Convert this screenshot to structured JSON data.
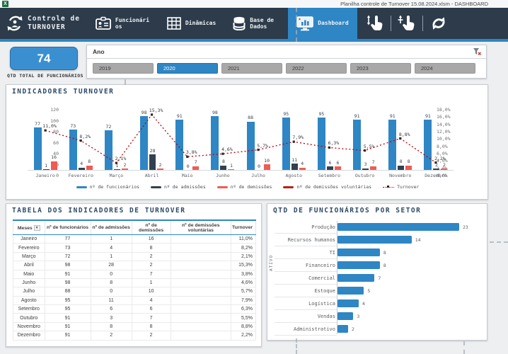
{
  "titlebar": {
    "title": "Planilha controle de Turnover 15.08.2024.xlsm - DASHBOARD"
  },
  "nav": {
    "brand": {
      "line1": "Controle de",
      "line2": "TURNOVER"
    },
    "items": [
      {
        "label": "Funcionários",
        "active": false
      },
      {
        "label": "Dinâmicas",
        "active": false
      },
      {
        "label": "Base de Dados",
        "active": false
      },
      {
        "label": "Dashboard",
        "active": true
      }
    ],
    "tools": [
      "pan-hand-icon",
      "tap-hand-icon",
      "refresh-icon"
    ]
  },
  "kpi": {
    "value": "74",
    "label": "QTD TOTAL DE FUNCIONÁRIOS"
  },
  "slicer": {
    "title": "Ano",
    "options": [
      {
        "label": "2019",
        "selected": false
      },
      {
        "label": "2020",
        "selected": true
      },
      {
        "label": "2021",
        "selected": false
      },
      {
        "label": "2022",
        "selected": false
      },
      {
        "label": "2023",
        "selected": false
      },
      {
        "label": "2024",
        "selected": false
      }
    ]
  },
  "colors": {
    "nav_dark": "#2d3b4a",
    "accent_blue": "#2e86c4",
    "bar_blue": "#2e86c4",
    "bar_navy": "#33414f",
    "bar_salmon": "#f05c54",
    "bar_darkred": "#b42318",
    "line_red": "#c00000",
    "slicer_gray": "#a8a8a8"
  },
  "chart_data": [
    {
      "type": "bar",
      "subtype": "combo-bar-line",
      "title": "INDICADORES TURNOVER",
      "categories": [
        "Janeiro",
        "Fevereiro",
        "Março",
        "Abril",
        "Maio",
        "Junho",
        "Julho",
        "Agosto",
        "Setembro",
        "Outubro",
        "Novembro",
        "Dezembro"
      ],
      "series": [
        {
          "name": "nº de funcionários",
          "kind": "bar",
          "color": "#2e86c4",
          "values": [
            77,
            73,
            72,
            98,
            91,
            98,
            88,
            95,
            95,
            91,
            91,
            91
          ]
        },
        {
          "name": "nº de admissões",
          "kind": "bar",
          "color": "#33414f",
          "values": [
            1,
            4,
            1,
            28,
            0,
            8,
            0,
            11,
            6,
            3,
            8,
            2
          ]
        },
        {
          "name": "nº de demissões",
          "kind": "bar",
          "color": "#f05c54",
          "values": [
            16,
            8,
            2,
            2,
            7,
            1,
            10,
            4,
            6,
            7,
            8,
            2
          ]
        },
        {
          "name": "nº de demissões voluntárias",
          "kind": "bar",
          "color": "#b42318",
          "values": []
        },
        {
          "name": "Turnover",
          "kind": "line",
          "color": "#c00000",
          "values": [
            11.0,
            8.2,
            2.1,
            15.3,
            3.8,
            4.6,
            5.7,
            7.9,
            6.3,
            5.5,
            8.8,
            2.2
          ],
          "labels": [
            "11,0%",
            "8,2%",
            "2,1%",
            "15,3%",
            "3,8%",
            "4,6%",
            "5,7%",
            "7,9%",
            "6,3%",
            "5,5%",
            "8,8%",
            "2,2%"
          ]
        }
      ],
      "left_axis": {
        "max": 120,
        "ticks": [
          0,
          20,
          40,
          60,
          80,
          100,
          120
        ]
      },
      "right_axis": {
        "max": 18,
        "ticks": [
          "0,0%",
          "2,0%",
          "4,0%",
          "6,0%",
          "8,0%",
          "10,0%",
          "12,0%",
          "14,0%",
          "16,0%",
          "18,0%"
        ]
      },
      "legend_position": "bottom"
    },
    {
      "type": "bar",
      "orientation": "horizontal",
      "title": "QTD DE FUNCIONÁRIOS POR SETOR",
      "axis_label": "ATIVO",
      "categories": [
        "Produção",
        "Recursos humanos",
        "TI",
        "Financeiro",
        "Comercial",
        "Estoque",
        "Logística",
        "Vendas",
        "Administrativo"
      ],
      "values": [
        23,
        14,
        8,
        8,
        7,
        5,
        4,
        3,
        2
      ],
      "bar_color": "#2e86c4",
      "xlim": [
        0,
        23
      ]
    }
  ],
  "table": {
    "title": "TABELA DOS INDICADORES DE TURNOVER",
    "columns": [
      "Meses",
      "nº de funcionários",
      "nº de admissões",
      "nº de demissões",
      "nº de demissões voluntárias",
      "Turnover"
    ],
    "rows": [
      [
        "Janeiro",
        "77",
        "1",
        "16",
        "",
        "11,0%"
      ],
      [
        "Fevereiro",
        "73",
        "4",
        "8",
        "",
        "8,2%"
      ],
      [
        "Março",
        "72",
        "1",
        "2",
        "",
        "2,1%"
      ],
      [
        "Abril",
        "98",
        "28",
        "2",
        "",
        "15,3%"
      ],
      [
        "Maio",
        "91",
        "0",
        "7",
        "",
        "3,8%"
      ],
      [
        "Junho",
        "98",
        "8",
        "1",
        "",
        "4,6%"
      ],
      [
        "Julho",
        "88",
        "0",
        "10",
        "",
        "5,7%"
      ],
      [
        "Agosto",
        "95",
        "11",
        "4",
        "",
        "7,9%"
      ],
      [
        "Setembro",
        "95",
        "6",
        "6",
        "",
        "6,3%"
      ],
      [
        "Outubro",
        "91",
        "3",
        "7",
        "",
        "5,5%"
      ],
      [
        "Novembro",
        "91",
        "8",
        "8",
        "",
        "8,8%"
      ],
      [
        "Dezembro",
        "91",
        "2",
        "2",
        "",
        "2,2%"
      ]
    ]
  },
  "icons": {
    "dropdown_arrow": "▼",
    "excel": "X"
  }
}
